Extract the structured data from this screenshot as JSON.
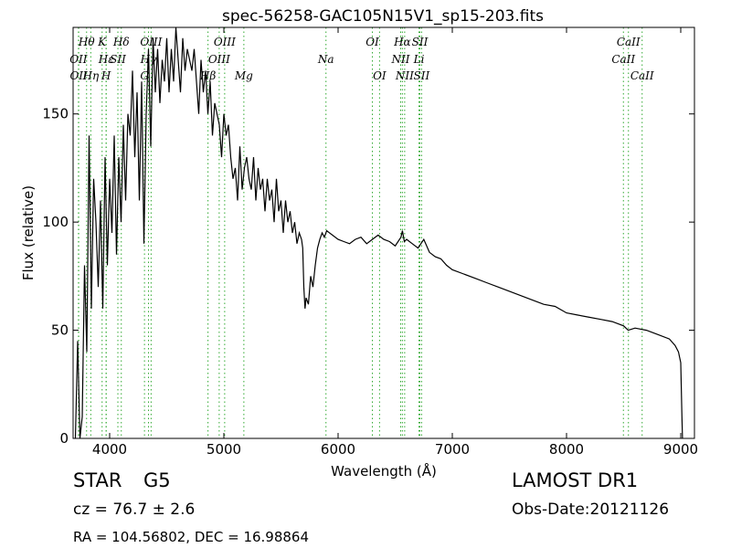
{
  "chart_data": {
    "type": "line",
    "title": "spec-56258-GAC105N15V1_sp15-203.fits",
    "xlabel": "Wavelength (Å)",
    "ylabel": "Flux (relative)",
    "xlim": [
      3680,
      9120
    ],
    "ylim": [
      0,
      190
    ],
    "xticks": [
      4000,
      5000,
      6000,
      7000,
      8000,
      9000
    ],
    "yticks": [
      0,
      50,
      100,
      150
    ],
    "grid": false,
    "line_color": "#000000",
    "marker_color": "#33aa33",
    "series": [
      {
        "x": [
          3700,
          3720,
          3740,
          3760,
          3780,
          3800,
          3820,
          3840,
          3860,
          3880,
          3900,
          3920,
          3940,
          3960,
          3980,
          4000,
          4020,
          4040,
          4060,
          4080,
          4100,
          4120,
          4140,
          4160,
          4180,
          4200,
          4220,
          4240,
          4260,
          4280,
          4300,
          4320,
          4340,
          4360,
          4380,
          4400,
          4420,
          4440,
          4460,
          4480,
          4500,
          4520,
          4540,
          4560,
          4580,
          4600,
          4620,
          4640,
          4660,
          4680,
          4700,
          4720,
          4740,
          4760,
          4780,
          4800,
          4820,
          4840,
          4860,
          4880,
          4900,
          4920,
          4940,
          4960,
          4980,
          5000,
          5020,
          5040,
          5060,
          5080,
          5100,
          5120,
          5140,
          5160,
          5180,
          5200,
          5220,
          5240,
          5260,
          5280,
          5300,
          5320,
          5340,
          5360,
          5380,
          5400,
          5420,
          5440,
          5460,
          5480,
          5500,
          5520,
          5540,
          5560,
          5580,
          5600,
          5620,
          5640,
          5660,
          5680,
          5690,
          5700,
          5710,
          5720,
          5740,
          5760,
          5780,
          5800,
          5820,
          5840,
          5860,
          5880,
          5900,
          5950,
          6000,
          6050,
          6100,
          6150,
          6200,
          6250,
          6300,
          6350,
          6400,
          6450,
          6500,
          6550,
          6563,
          6580,
          6600,
          6650,
          6700,
          6750,
          6800,
          6850,
          6900,
          6950,
          7000,
          7100,
          7200,
          7300,
          7400,
          7500,
          7600,
          7700,
          7800,
          7900,
          8000,
          8100,
          8200,
          8300,
          8400,
          8500,
          8540,
          8600,
          8700,
          8800,
          8900,
          8950,
          8980,
          9000,
          9010,
          9015
        ],
        "y": [
          0,
          45,
          0,
          10,
          80,
          40,
          140,
          60,
          120,
          100,
          70,
          110,
          60,
          130,
          80,
          120,
          95,
          140,
          85,
          130,
          100,
          145,
          110,
          150,
          140,
          170,
          130,
          160,
          110,
          165,
          90,
          150,
          180,
          135,
          185,
          160,
          180,
          155,
          175,
          165,
          185,
          160,
          180,
          165,
          190,
          175,
          160,
          185,
          170,
          180,
          175,
          170,
          180,
          165,
          150,
          175,
          160,
          170,
          150,
          165,
          140,
          155,
          150,
          145,
          130,
          150,
          140,
          145,
          130,
          120,
          125,
          110,
          135,
          115,
          125,
          130,
          120,
          115,
          130,
          110,
          125,
          115,
          120,
          105,
          120,
          110,
          115,
          100,
          120,
          105,
          110,
          95,
          110,
          100,
          105,
          95,
          100,
          90,
          95,
          92,
          88,
          70,
          60,
          65,
          62,
          75,
          70,
          80,
          88,
          92,
          95,
          93,
          96,
          94,
          92,
          91,
          90,
          92,
          93,
          90,
          92,
          94,
          92,
          91,
          89,
          93,
          96,
          91,
          92,
          90,
          88,
          92,
          86,
          84,
          83,
          80,
          78,
          76,
          74,
          72,
          70,
          68,
          66,
          64,
          62,
          61,
          58,
          57,
          56,
          55,
          54,
          52,
          50,
          51,
          50,
          48,
          46,
          43,
          40,
          35,
          10,
          0
        ]
      }
    ],
    "lines": [
      {
        "name": "Hθ",
        "wl": 3798,
        "row": 1
      },
      {
        "name": "OII",
        "wl": 3727,
        "row": 2
      },
      {
        "name": "OII",
        "wl": 3729,
        "row": 3
      },
      {
        "name": "Hη",
        "wl": 3835,
        "row": 3
      },
      {
        "name": "K",
        "wl": 3934,
        "row": 1
      },
      {
        "name": "Hε",
        "wl": 3970,
        "row": 2
      },
      {
        "name": "H",
        "wl": 3969,
        "row": 3
      },
      {
        "name": "SII",
        "wl": 4072,
        "row": 2
      },
      {
        "name": "Hδ",
        "wl": 4102,
        "row": 1
      },
      {
        "name": "OIII",
        "wl": 4363,
        "row": 1
      },
      {
        "name": "Hγ",
        "wl": 4340,
        "row": 2
      },
      {
        "name": "G",
        "wl": 4305,
        "row": 3
      },
      {
        "name": "OIII",
        "wl": 5007,
        "row": 1
      },
      {
        "name": "OIII",
        "wl": 4959,
        "row": 2
      },
      {
        "name": "Hβ",
        "wl": 4861,
        "row": 3
      },
      {
        "name": "Mg",
        "wl": 5175,
        "row": 3
      },
      {
        "name": "Na",
        "wl": 5894,
        "row": 2
      },
      {
        "name": "OI",
        "wl": 6300,
        "row": 1
      },
      {
        "name": "OI",
        "wl": 6363,
        "row": 3
      },
      {
        "name": "Hα",
        "wl": 6563,
        "row": 1
      },
      {
        "name": "NII",
        "wl": 6548,
        "row": 2
      },
      {
        "name": "NII",
        "wl": 6583,
        "row": 3
      },
      {
        "name": "SII",
        "wl": 6716,
        "row": 1
      },
      {
        "name": "Li",
        "wl": 6708,
        "row": 2
      },
      {
        "name": "SII",
        "wl": 6731,
        "row": 3
      },
      {
        "name": "CaII",
        "wl": 8542,
        "row": 1
      },
      {
        "name": "CaII",
        "wl": 8498,
        "row": 2
      },
      {
        "name": "CaII",
        "wl": 8662,
        "row": 3
      }
    ]
  },
  "info": {
    "class_label": "STAR",
    "subclass": "G5",
    "cz_label": "cz = 76.7",
    "pm": "±",
    "cz_err": "2.6",
    "radec": "RA = 104.56802, DEC = 16.98864",
    "survey": "LAMOST DR1",
    "obs_date": "Obs-Date:20121126"
  }
}
